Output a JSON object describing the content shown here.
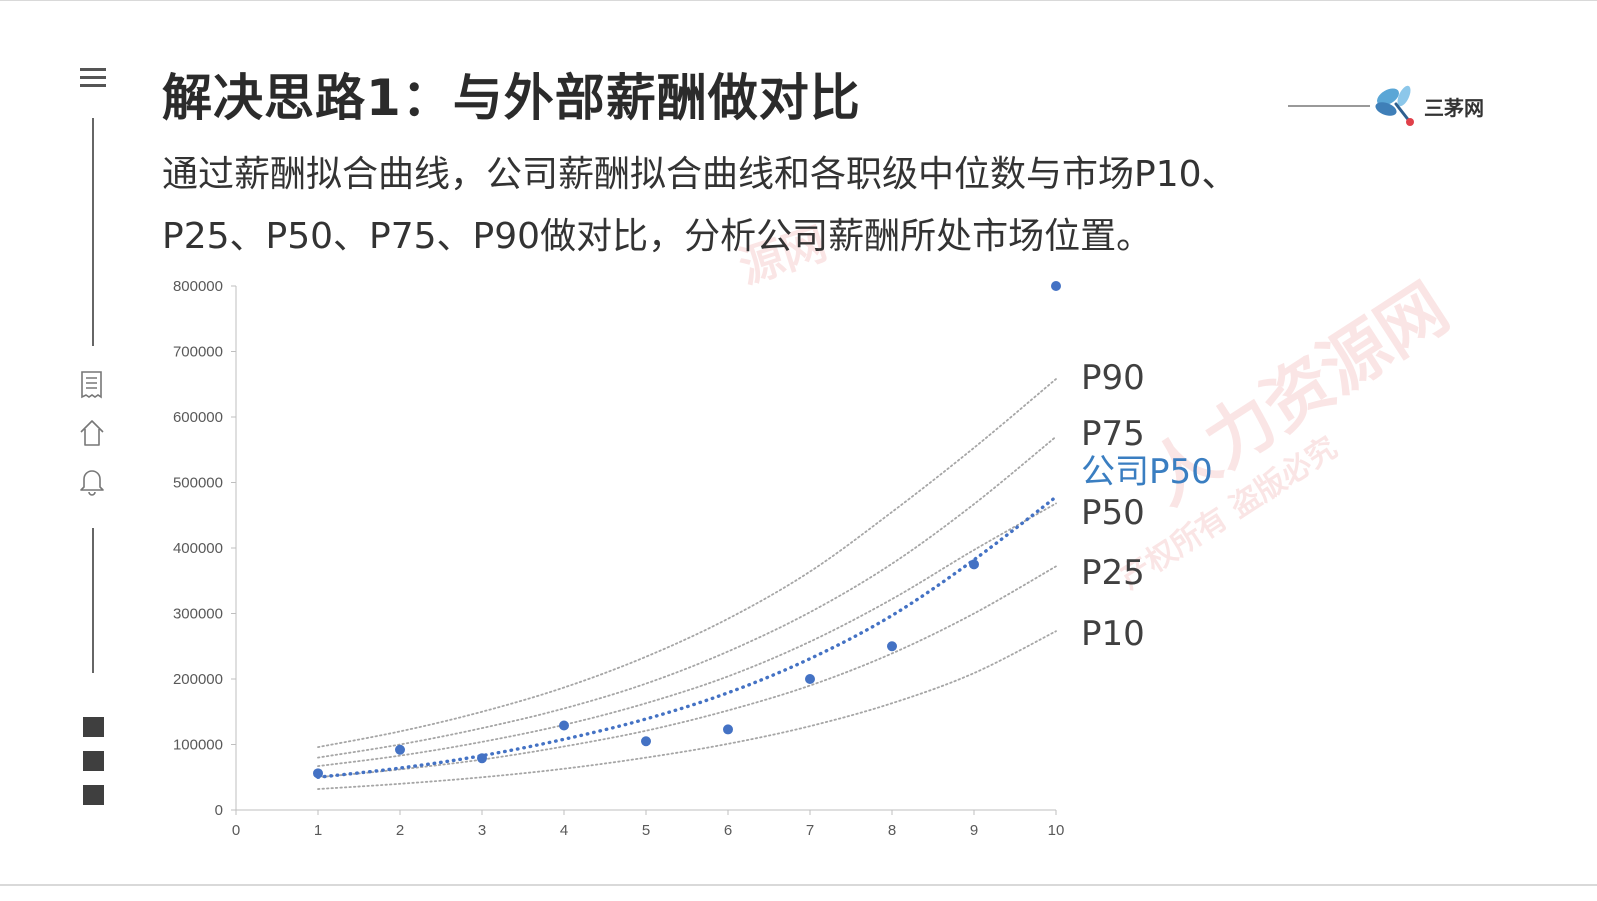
{
  "page": {
    "title": "解决思路1：与外部薪酬做对比",
    "subtitle_line1": "通过薪酬拟合曲线，公司薪酬拟合曲线和各职级中位数与市场P10、",
    "subtitle_line2": "P25、P50、P75、P90做对比，分析公司薪酬所处市场位置。"
  },
  "logo": {
    "text": "三茅网",
    "icon": "dragonfly-icon"
  },
  "watermark": {
    "line1": "人力资源网",
    "line2": "产权所有 盗版必究",
    "fragment": "源网"
  },
  "sidebar": {
    "icons": [
      "menu-icon",
      "document-icon",
      "home-icon",
      "bell-icon"
    ],
    "squares": 3
  },
  "colors": {
    "company_series": "#4472c4",
    "company_label": "#3a7ec1",
    "market_curves": "#a6a6a6",
    "watermark": "#e15f5f"
  },
  "chart_data": {
    "type": "scatter",
    "xlim": [
      0,
      10
    ],
    "ylim": [
      0,
      800000
    ],
    "x_ticks": [
      0,
      1,
      2,
      3,
      4,
      5,
      6,
      7,
      8,
      9,
      10
    ],
    "y_ticks": [
      0,
      100000,
      200000,
      300000,
      400000,
      500000,
      600000,
      700000,
      800000
    ],
    "grid": false,
    "points": {
      "name": "",
      "x": [
        1,
        2,
        3,
        4,
        5,
        6,
        7,
        8,
        9,
        10
      ],
      "y": [
        56000,
        92000,
        79000,
        129000,
        105000,
        123000,
        200000,
        250000,
        375000,
        800000
      ]
    },
    "company_fit": {
      "name": "公司P50",
      "x": [
        1,
        2,
        3,
        4,
        5,
        6,
        7,
        8,
        9,
        10
      ],
      "y": [
        50000,
        64000,
        83000,
        108000,
        139000,
        179000,
        231000,
        297000,
        382000,
        478000
      ]
    },
    "market_curves": [
      {
        "name": "P90",
        "x": [
          1,
          2,
          3,
          4,
          5,
          6,
          7,
          8,
          9,
          10
        ],
        "y": [
          96000,
          120000,
          150000,
          187000,
          234000,
          292000,
          364000,
          455000,
          553000,
          658000
        ]
      },
      {
        "name": "P75",
        "x": [
          1,
          2,
          3,
          4,
          5,
          6,
          7,
          8,
          9,
          10
        ],
        "y": [
          80000,
          100000,
          125000,
          155000,
          193000,
          242000,
          302000,
          376000,
          467000,
          570000
        ]
      },
      {
        "name": "P50",
        "x": [
          1,
          2,
          3,
          4,
          5,
          6,
          7,
          8,
          9,
          10
        ],
        "y": [
          67000,
          83000,
          104000,
          130000,
          163000,
          204000,
          257000,
          322000,
          397000,
          468000
        ]
      },
      {
        "name": "P25",
        "x": [
          1,
          2,
          3,
          4,
          5,
          6,
          7,
          8,
          9,
          10
        ],
        "y": [
          50000,
          62000,
          77000,
          97000,
          121000,
          152000,
          190000,
          239000,
          300000,
          372000
        ]
      },
      {
        "name": "P10",
        "x": [
          1,
          2,
          3,
          4,
          5,
          6,
          7,
          8,
          9,
          10
        ],
        "y": [
          32000,
          40000,
          50000,
          63000,
          80000,
          101000,
          128000,
          163000,
          209000,
          273000
        ]
      }
    ],
    "series_labels": [
      "P90",
      "P75",
      "公司P50",
      "P50",
      "P25",
      "P10"
    ]
  }
}
